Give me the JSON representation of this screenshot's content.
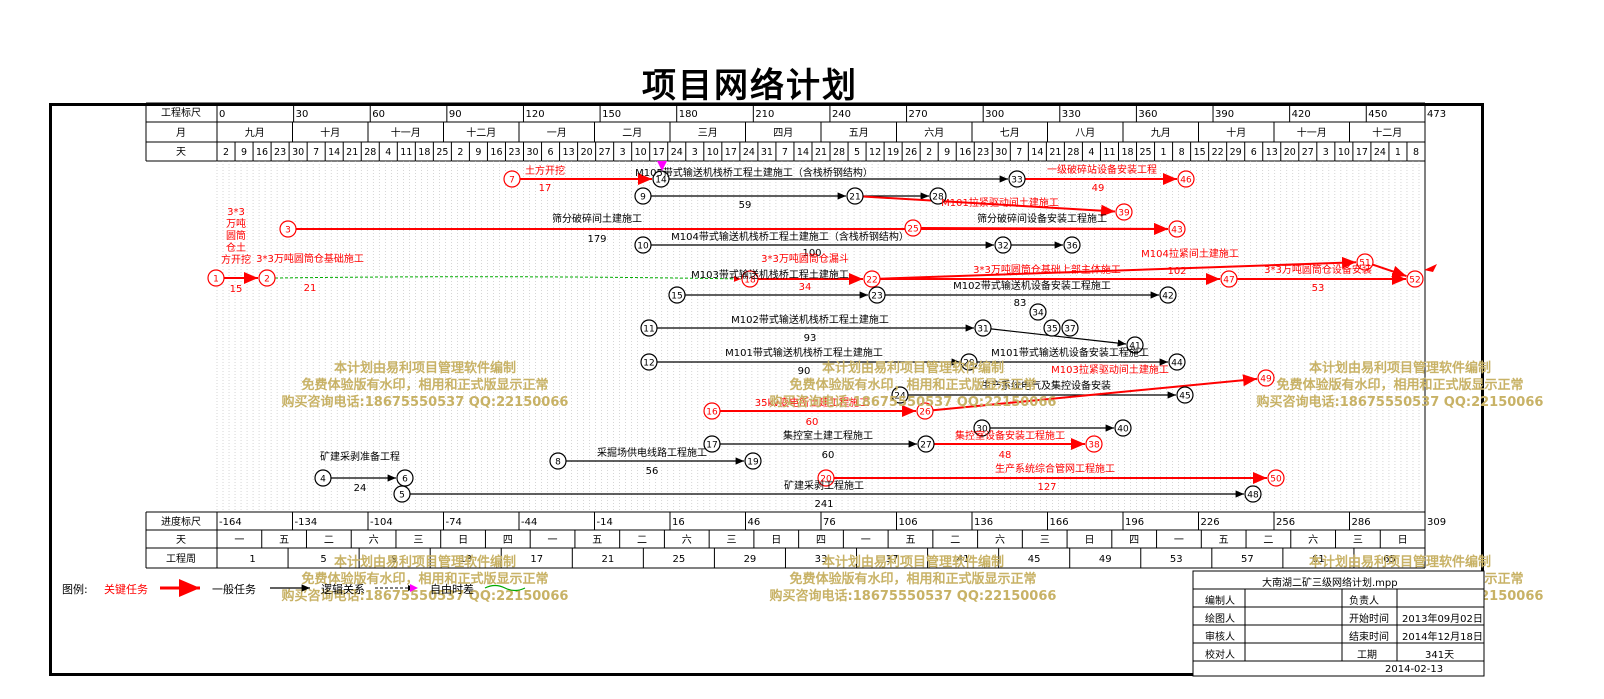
{
  "title": "项目网络计划",
  "header": {
    "row_scale_label": "工程标尺",
    "row_month_label": "月",
    "row_day_label": "天",
    "scale_ticks": [
      "0",
      "30",
      "60",
      "90",
      "120",
      "150",
      "180",
      "210",
      "240",
      "270",
      "300",
      "330",
      "360",
      "390",
      "420",
      "450",
      "473"
    ],
    "months": [
      "九月",
      "十月",
      "十一月",
      "十二月",
      "一月",
      "二月",
      "三月",
      "四月",
      "五月",
      "六月",
      "七月",
      "八月",
      "九月",
      "十月",
      "十一月",
      "十二月"
    ],
    "days": [
      "2",
      "9",
      "16",
      "23",
      "30",
      "7",
      "14",
      "21",
      "28",
      "4",
      "11",
      "18",
      "25",
      "2",
      "9",
      "16",
      "23",
      "30",
      "6",
      "13",
      "20",
      "27",
      "3",
      "10",
      "17",
      "24",
      "3",
      "10",
      "17",
      "24",
      "31",
      "7",
      "14",
      "21",
      "28",
      "5",
      "12",
      "19",
      "26",
      "2",
      "9",
      "16",
      "23",
      "30",
      "7",
      "14",
      "21",
      "28",
      "4",
      "11",
      "18",
      "25",
      "1",
      "8",
      "15",
      "22",
      "29",
      "6",
      "13",
      "20",
      "27",
      "3",
      "10",
      "17",
      "24",
      "1",
      "8"
    ]
  },
  "footer": {
    "row_progress_label": "进度标尺",
    "row_weekday_label": "天",
    "row_week_label": "工程周",
    "progress_ticks": [
      "-164",
      "-134",
      "-104",
      "-74",
      "-44",
      "-14",
      "16",
      "46",
      "76",
      "106",
      "136",
      "166",
      "196",
      "226",
      "256",
      "286",
      "309"
    ],
    "weekdays": [
      "一",
      "五",
      "二",
      "六",
      "三",
      "日",
      "四",
      "一",
      "五",
      "二",
      "六",
      "三",
      "日",
      "四",
      "一",
      "五",
      "二",
      "六",
      "三",
      "日",
      "四",
      "一",
      "五",
      "二",
      "六",
      "三",
      "日"
    ],
    "weeks": [
      "1",
      "5",
      "9",
      "13",
      "17",
      "21",
      "25",
      "29",
      "33",
      "37",
      "41",
      "45",
      "49",
      "53",
      "57",
      "61",
      "65"
    ]
  },
  "nodes": [
    {
      "id": "1",
      "critical": true
    },
    {
      "id": "2",
      "critical": true
    },
    {
      "id": "3",
      "critical": true
    },
    {
      "id": "4",
      "critical": false
    },
    {
      "id": "5",
      "critical": false
    },
    {
      "id": "6",
      "critical": false
    },
    {
      "id": "7",
      "critical": true
    },
    {
      "id": "8",
      "critical": false
    },
    {
      "id": "9",
      "critical": false
    },
    {
      "id": "10",
      "critical": false
    },
    {
      "id": "11",
      "critical": false
    },
    {
      "id": "12",
      "critical": false
    },
    {
      "id": "14",
      "critical": false
    },
    {
      "id": "15",
      "critical": false
    },
    {
      "id": "16",
      "critical": true
    },
    {
      "id": "17",
      "critical": false
    },
    {
      "id": "18",
      "critical": true
    },
    {
      "id": "19",
      "critical": false
    },
    {
      "id": "20",
      "critical": true
    },
    {
      "id": "21",
      "critical": false
    },
    {
      "id": "22",
      "critical": true
    },
    {
      "id": "23",
      "critical": false
    },
    {
      "id": "24",
      "critical": false
    },
    {
      "id": "25",
      "critical": true
    },
    {
      "id": "26",
      "critical": true
    },
    {
      "id": "27",
      "critical": false
    },
    {
      "id": "28",
      "critical": false
    },
    {
      "id": "29",
      "critical": false
    },
    {
      "id": "30",
      "critical": false
    },
    {
      "id": "31",
      "critical": false
    },
    {
      "id": "32",
      "critical": false
    },
    {
      "id": "33",
      "critical": false
    },
    {
      "id": "34",
      "critical": false
    },
    {
      "id": "36",
      "critical": false
    },
    {
      "id": "38",
      "critical": true
    },
    {
      "id": "39",
      "critical": true
    },
    {
      "id": "40",
      "critical": false
    },
    {
      "id": "41",
      "critical": false
    },
    {
      "id": "42",
      "critical": false
    },
    {
      "id": "43",
      "critical": true
    },
    {
      "id": "44",
      "critical": false
    },
    {
      "id": "45",
      "critical": false
    },
    {
      "id": "46",
      "critical": true
    },
    {
      "id": "47",
      "critical": true
    },
    {
      "id": "48",
      "critical": false
    },
    {
      "id": "49",
      "critical": true
    },
    {
      "id": "50",
      "critical": true
    },
    {
      "id": "51",
      "critical": true
    },
    {
      "id": "52",
      "critical": true
    },
    {
      "id": "35",
      "critical": false
    },
    {
      "id": "37",
      "critical": false
    }
  ],
  "task_labels": [
    {
      "text": "3*3万吨圆筒仓土方开挖",
      "duration": "15",
      "critical": true
    },
    {
      "text": "3*3万吨圆筒仓基础施工",
      "duration": "21",
      "critical": true
    },
    {
      "text": "筛分破碎间土建施工",
      "duration": "179",
      "critical": false
    },
    {
      "text": "M104带式输送机栈桥工程土建施工（含栈桥钢结构）",
      "duration": "100",
      "critical": false
    },
    {
      "text": "M103带式输送机栈桥工程土建施工",
      "duration": "",
      "critical": false
    },
    {
      "text": "3*3万吨圆筒仓漏斗",
      "duration": "34",
      "critical": true
    },
    {
      "text": "3*3万吨圆筒仓基础上部主体施工",
      "duration": "102",
      "critical": true
    },
    {
      "text": "3*3万吨圆筒仓设备安装",
      "duration": "53",
      "critical": true
    },
    {
      "text": "一级破碎站设备安装工程",
      "duration": "49",
      "critical": true
    },
    {
      "text": "M104拉紧间土建施工",
      "duration": "",
      "critical": true
    },
    {
      "text": "M101拉紧驱动间土建施工",
      "duration": "",
      "critical": true
    },
    {
      "text": "M102带式输送机栈桥工程土建施工",
      "duration": "93",
      "critical": false
    },
    {
      "text": "M101带式输送机栈桥工程土建施工",
      "duration": "90",
      "critical": false
    },
    {
      "text": "M101带式输送机设备安装工程施工",
      "duration": "",
      "critical": false
    },
    {
      "text": "M103拉紧驱动间土建施工",
      "duration": "",
      "critical": true
    },
    {
      "text": "35kv变电所土建工程施工",
      "duration": "60",
      "critical": true
    },
    {
      "text": "集控室土建工程施工",
      "duration": "60",
      "critical": false
    },
    {
      "text": "集控室设备安装工程施工",
      "duration": "48",
      "critical": true
    },
    {
      "text": "采掘场供电线路工程施工",
      "duration": "56",
      "critical": false
    },
    {
      "text": "生产系统综合管网工程施工",
      "duration": "127",
      "critical": true
    },
    {
      "text": "矿建采剥工程施工",
      "duration": "241",
      "critical": false
    },
    {
      "text": "矿建采剥准备工程",
      "duration": "24",
      "critical": false
    },
    {
      "text": "土方开挖",
      "duration": "17",
      "critical": true
    },
    {
      "text": "筛分破碎间设备安装工程施工",
      "duration": "",
      "critical": false
    },
    {
      "text": "M102带式输送机设备安装工程施工",
      "duration": "83",
      "critical": false
    },
    {
      "text": "生产系统电气及集控设备安装",
      "duration": "",
      "critical": false
    },
    {
      "text": "M105带式输送机栈桥工程土建施工（含栈桥钢结构）",
      "duration": "59",
      "critical": false
    }
  ],
  "watermark": {
    "line1": "本计划由易利项目管理软件编制",
    "line2": "免费体验版有水印，相用和正式版显示正常",
    "line3": "购买咨询电话:18675550537 QQ:22150066"
  },
  "legend": {
    "prefix": "图例:",
    "critical": "关键任务",
    "normal": "一般任务",
    "logic": "逻辑关系",
    "float": "自由时差"
  },
  "info_box": {
    "file": "大南湖二矿三级网络计划.mpp",
    "compiler_label": "编制人",
    "drawer_label": "绘图人",
    "reviewer_label": "审核人",
    "checker_label": "校对人",
    "owner_label": "负责人",
    "start_label": "开始时间",
    "start_value": "2013年09月02日",
    "end_label": "结束时间",
    "end_value": "2014年12月18日",
    "duration_label": "工期",
    "duration_value": "341天",
    "print_date": "2014-02-13"
  },
  "colors": {
    "critical": "#ff0000",
    "normal": "#000000",
    "watermark": "#c8b266",
    "float": "#00aa00",
    "milestone": "#ff00ff"
  }
}
